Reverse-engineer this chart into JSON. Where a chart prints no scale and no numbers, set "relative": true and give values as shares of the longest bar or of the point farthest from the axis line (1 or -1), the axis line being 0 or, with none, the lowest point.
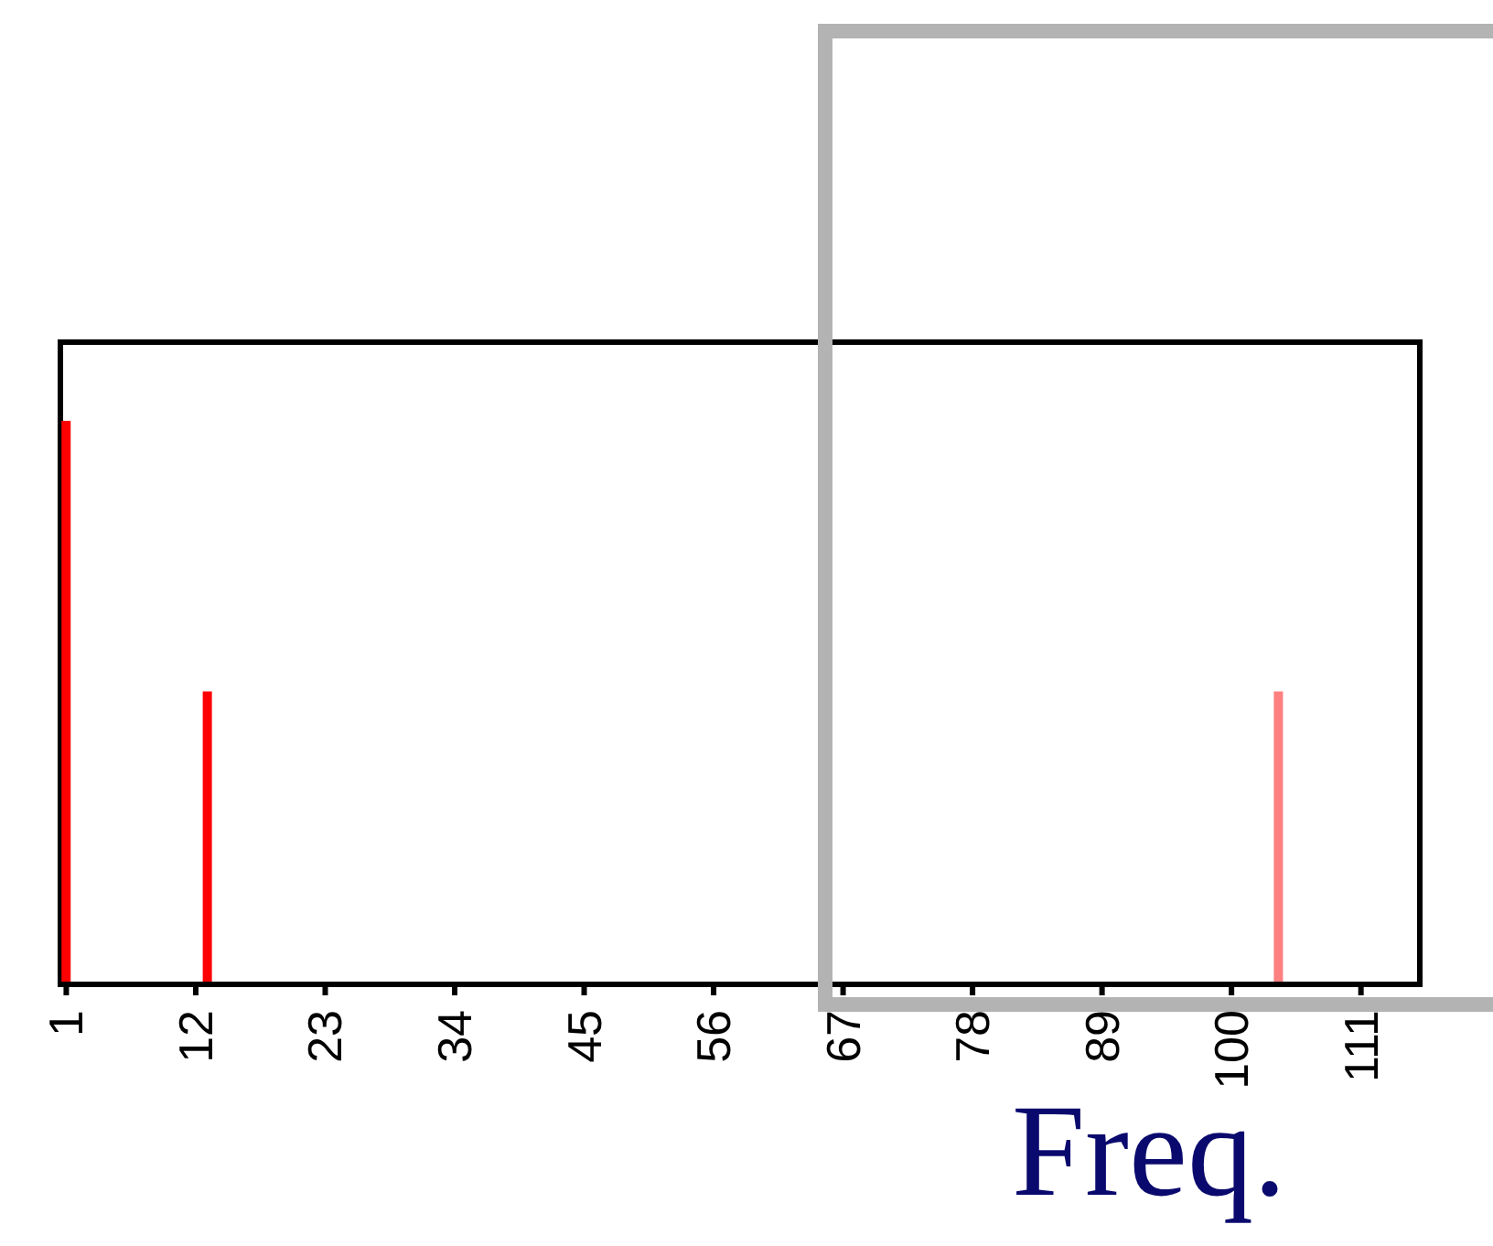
{
  "chart_data": {
    "type": "bar",
    "relative": true,
    "xlabel": "Freq.",
    "x": [
      1,
      13,
      104
    ],
    "values": [
      1,
      0.52,
      0.52
    ],
    "colors": [
      "#ff0000",
      "#ff0000",
      "#ff8080"
    ],
    "xlim": [
      0.5,
      116
    ],
    "xticks": [
      1,
      12,
      23,
      34,
      45,
      56,
      67,
      78,
      89,
      100,
      111
    ]
  }
}
